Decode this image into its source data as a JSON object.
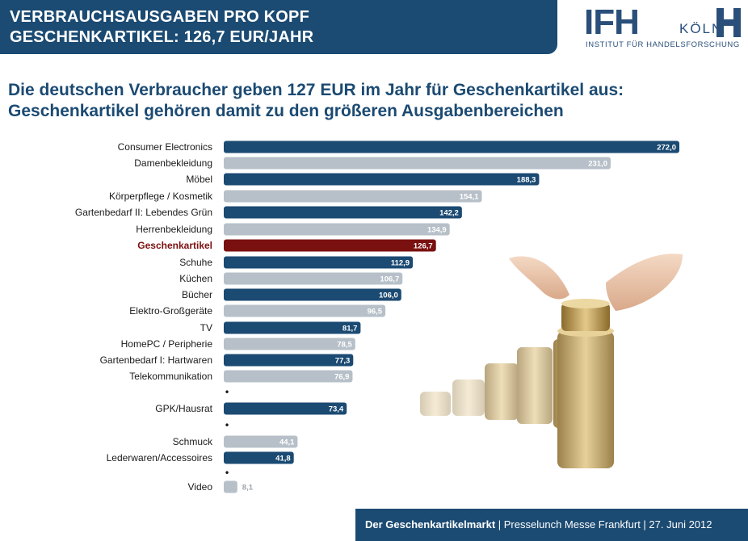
{
  "header": {
    "line1": "VERBRAUCHSAUSGABEN PRO KOPF",
    "line2": "GESCHENKARTIKEL: 126,7 EUR/JAHR"
  },
  "logo": {
    "main": "IFH",
    "city": "KÖLN",
    "subtitle": "INSTITUT FÜR HANDELSFORSCHUNG"
  },
  "headline": {
    "line1": "Die deutschen Verbraucher geben 127 EUR im Jahr für  Geschenkartikel aus:",
    "line2": "Geschenkartikel gehören damit zu den größeren Ausgabenbereichen"
  },
  "colors": {
    "dark_bar": "#1b4a72",
    "light_bar": "#b7c0c9",
    "highlight_bar": "#7b1010",
    "header": "#1b4a72"
  },
  "chart_data": {
    "type": "bar",
    "orientation": "horizontal",
    "xlim": [
      0,
      272
    ],
    "categories": [
      "Consumer Electronics",
      "Damenbekleidung",
      "Möbel",
      "Körperpflege / Kosmetik",
      "Gartenbedarf II: Lebendes Grün",
      "Herrenbekleidung",
      "Geschenkartikel",
      "Schuhe",
      "Küchen",
      "Bücher",
      "Elektro-Großgeräte",
      "TV",
      "HomePC / Peripherie",
      "Gartenbedarf I: Hartwaren",
      "Telekommunikation",
      "GPK/Hausrat",
      "Schmuck",
      "Lederwaren/Accessoires",
      "Video"
    ],
    "values": [
      272.0,
      231.0,
      188.3,
      154.1,
      142.2,
      134.9,
      126.7,
      112.9,
      106.7,
      106.0,
      96.5,
      81.7,
      78.5,
      77.3,
      76.9,
      73.4,
      44.1,
      41.8,
      8.1
    ],
    "value_labels": [
      "272,0",
      "231,0",
      "188,3",
      "154,1",
      "142,2",
      "134,9",
      "126,7",
      "112,9",
      "106,7",
      "106,0",
      "96,5",
      "81,7",
      "78,5",
      "77,3",
      "76,9",
      "73,4",
      "44,1",
      "41,8",
      "8,1"
    ],
    "bar_style": [
      "dark",
      "light",
      "dark",
      "light",
      "dark",
      "light",
      "highlight",
      "dark",
      "light",
      "dark",
      "light",
      "dark",
      "light",
      "dark",
      "light",
      "dark",
      "light",
      "dark",
      "light"
    ],
    "ellipsis_marker": "•"
  },
  "footer": {
    "bold": "Der Geschenkartikelmarkt",
    "rest": " | Presselunch Messe Frankfurt | 27. Juni 2012"
  }
}
